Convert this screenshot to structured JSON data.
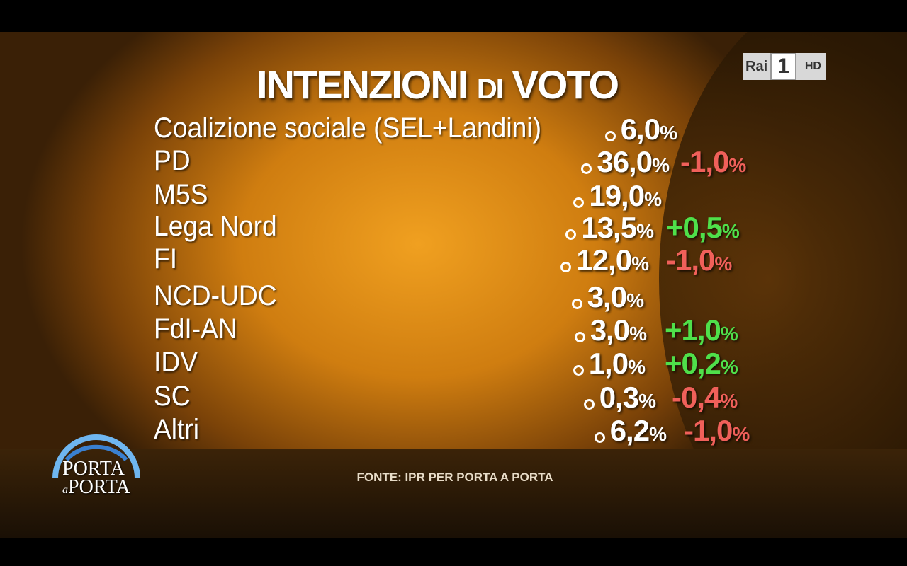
{
  "title": [
    "INTENZIONI",
    "DI",
    "VOTO"
  ],
  "channel": {
    "name": "Rai",
    "number": "1",
    "quality": "HD"
  },
  "show": [
    "PORTA",
    "a",
    "PORTA"
  ],
  "table": {
    "rows": [
      {
        "party": "Coalizione sociale (SEL+Landini)",
        "value": "6,0%"
      },
      {
        "party": "PD",
        "value": "36,0%",
        "change": "-1,0%"
      },
      {
        "party": "M5S",
        "value": "19,0%"
      },
      {
        "party": "Lega Nord",
        "value": "13,5%",
        "change": "+0,5%"
      },
      {
        "party": "FI",
        "value": "12,0%",
        "change": "-1,0%"
      },
      {
        "party": "NCD-UDC",
        "value": "3,0%"
      },
      {
        "party": "FdI-AN",
        "value": "3,0%",
        "change": "+1,0%"
      },
      {
        "party": "IDV",
        "value": "1,0%",
        "change": "+0,2%"
      },
      {
        "party": "SC",
        "value": "0,3%",
        "change": "-0,4%"
      },
      {
        "party": "Altri",
        "value": "6,2%",
        "change": "-1,0%"
      }
    ]
  },
  "source": "FONTE: IPR PER PORTA A PORTA"
}
